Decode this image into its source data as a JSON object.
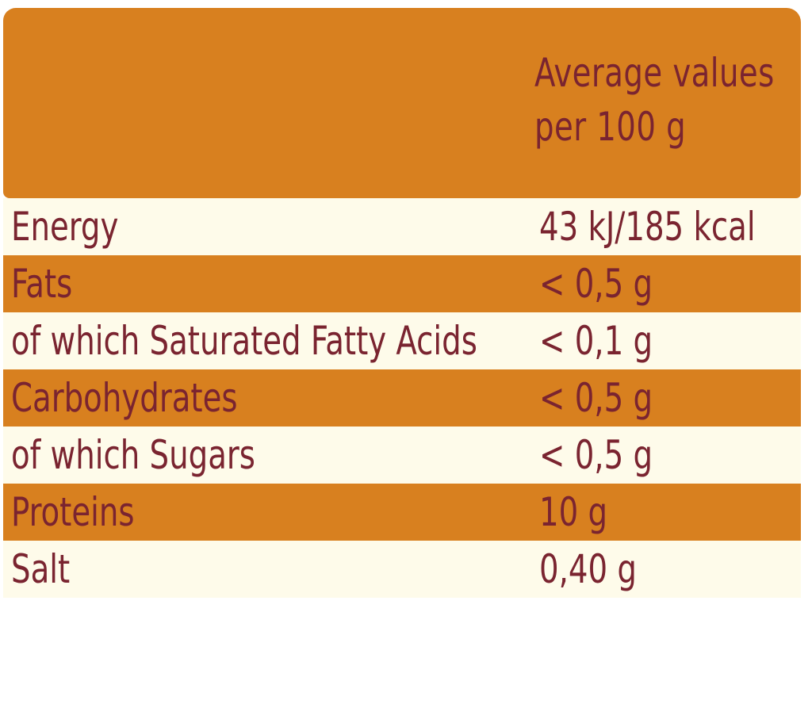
{
  "header": {
    "line1": "Average values",
    "line2": "per 100 g"
  },
  "rows": [
    {
      "label": "Energy",
      "value": "43 kJ/185 kcal"
    },
    {
      "label": "Fats",
      "value": "< 0,5 g"
    },
    {
      "label": "of which Saturated Fatty Acids",
      "value": "< 0,1 g"
    },
    {
      "label": "Carbohydrates",
      "value": "< 0,5 g"
    },
    {
      "label": "of which Sugars",
      "value": "< 0,5 g"
    },
    {
      "label": "Proteins",
      "value": "10 g"
    },
    {
      "label": "Salt",
      "value": "0,40 g"
    }
  ],
  "colors": {
    "orange": "#d8801f",
    "cream": "#fefbea",
    "text": "#7a2430"
  }
}
